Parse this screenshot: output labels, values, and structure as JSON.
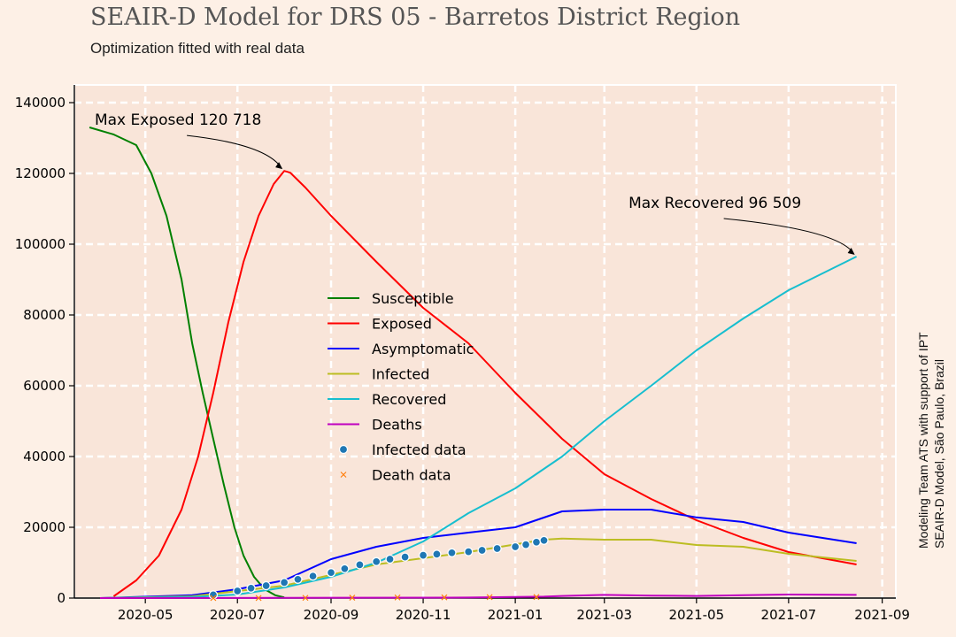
{
  "chart_data": {
    "type": "line",
    "title": "SEAIR-D Model for DRS 05 - Barretos District Region",
    "subtitle": "Optimization fitted with real data",
    "side_note": [
      "Modeling Team ATS with support of IPT",
      "SEAIR-D Model, São Paulo, Brazil"
    ],
    "xlabel": "",
    "ylabel": "",
    "x_axis": {
      "type": "date",
      "range": [
        "2020-03-15",
        "2021-09-10"
      ],
      "ticks": [
        "2020-05",
        "2020-07",
        "2020-09",
        "2020-11",
        "2021-01",
        "2021-03",
        "2021-05",
        "2021-07",
        "2021-09"
      ]
    },
    "y_axis": {
      "range": [
        0,
        145000
      ],
      "ticks": [
        0,
        20000,
        40000,
        60000,
        80000,
        100000,
        120000,
        140000
      ]
    },
    "grid": true,
    "legend_position": "center-left",
    "colors": {
      "background": "#fdf0e6",
      "plot_area": "#f9e5d9",
      "grid": "#ffffff"
    },
    "series": [
      {
        "name": "Susceptible",
        "color": "#008000",
        "kind": "line",
        "x": [
          "2020-03-25",
          "2020-04-10",
          "2020-04-25",
          "2020-05-05",
          "2020-05-15",
          "2020-05-25",
          "2020-06-01",
          "2020-06-08",
          "2020-06-15",
          "2020-06-22",
          "2020-06-29",
          "2020-07-05",
          "2020-07-12",
          "2020-07-19",
          "2020-07-26",
          "2020-08-01"
        ],
        "y": [
          133000,
          131000,
          128000,
          120000,
          108000,
          90000,
          72000,
          58000,
          45000,
          32000,
          20000,
          12000,
          6000,
          2500,
          800,
          200
        ]
      },
      {
        "name": "Exposed",
        "color": "#ff0000",
        "kind": "line",
        "x": [
          "2020-04-10",
          "2020-04-25",
          "2020-05-10",
          "2020-05-25",
          "2020-06-05",
          "2020-06-15",
          "2020-06-25",
          "2020-07-05",
          "2020-07-15",
          "2020-07-25",
          "2020-08-01",
          "2020-08-05",
          "2020-08-15",
          "2020-09-01",
          "2020-10-01",
          "2020-11-01",
          "2020-12-01",
          "2021-01-01",
          "2021-02-01",
          "2021-03-01",
          "2021-04-01",
          "2021-05-01",
          "2021-06-01",
          "2021-07-01",
          "2021-08-15"
        ],
        "y": [
          500,
          5000,
          12000,
          25000,
          40000,
          58000,
          78000,
          95000,
          108000,
          117000,
          120700,
          120200,
          116000,
          108000,
          95000,
          82000,
          72000,
          58000,
          45000,
          35000,
          28000,
          22000,
          17000,
          13000,
          9500
        ]
      },
      {
        "name": "Asymptomatic",
        "color": "#0000ff",
        "kind": "line",
        "x": [
          "2020-04-01",
          "2020-06-01",
          "2020-07-01",
          "2020-08-01",
          "2020-09-01",
          "2020-10-01",
          "2020-11-01",
          "2020-12-01",
          "2021-01-01",
          "2021-02-01",
          "2021-03-01",
          "2021-04-01",
          "2021-05-01",
          "2021-06-01",
          "2021-07-01",
          "2021-08-15"
        ],
        "y": [
          0,
          800,
          2500,
          5000,
          11000,
          14500,
          17000,
          18500,
          20000,
          24500,
          25000,
          25000,
          22800,
          21500,
          18500,
          15500
        ]
      },
      {
        "name": "Infected",
        "color": "#bcbd22",
        "kind": "line",
        "x": [
          "2020-04-01",
          "2020-06-01",
          "2020-08-01",
          "2020-10-01",
          "2020-12-01",
          "2021-01-20",
          "2021-02-01",
          "2021-03-01",
          "2021-04-01",
          "2021-05-01",
          "2021-06-01",
          "2021-07-01",
          "2021-08-15"
        ],
        "y": [
          0,
          500,
          3500,
          9500,
          13000,
          16500,
          16800,
          16500,
          16500,
          15000,
          14500,
          12500,
          10500
        ]
      },
      {
        "name": "Recovered",
        "color": "#17becf",
        "kind": "line",
        "x": [
          "2020-04-01",
          "2020-06-01",
          "2020-07-01",
          "2020-08-01",
          "2020-09-01",
          "2020-10-01",
          "2020-11-01",
          "2020-12-01",
          "2021-01-01",
          "2021-02-01",
          "2021-03-01",
          "2021-04-01",
          "2021-05-01",
          "2021-06-01",
          "2021-07-01",
          "2021-08-15"
        ],
        "y": [
          0,
          300,
          1000,
          3000,
          6000,
          10000,
          16000,
          24000,
          31000,
          40000,
          50000,
          60000,
          70000,
          79000,
          87000,
          96509
        ]
      },
      {
        "name": "Deaths",
        "color": "#bf00bf",
        "kind": "line",
        "x": [
          "2020-04-01",
          "2020-08-01",
          "2020-12-01",
          "2021-01-20",
          "2021-02-01",
          "2021-03-01",
          "2021-04-01",
          "2021-05-01",
          "2021-06-01",
          "2021-07-01",
          "2021-08-15"
        ],
        "y": [
          0,
          50,
          150,
          400,
          600,
          900,
          700,
          600,
          800,
          1000,
          900
        ]
      },
      {
        "name": "Infected data",
        "color": "#1f77b4",
        "kind": "scatter-dot",
        "x": [
          "2020-06-15",
          "2020-07-01",
          "2020-07-10",
          "2020-07-20",
          "2020-08-01",
          "2020-08-10",
          "2020-08-20",
          "2020-09-01",
          "2020-09-10",
          "2020-09-20",
          "2020-10-01",
          "2020-10-10",
          "2020-10-20",
          "2020-11-01",
          "2020-11-10",
          "2020-11-20",
          "2020-12-01",
          "2020-12-10",
          "2020-12-20",
          "2021-01-01",
          "2021-01-08",
          "2021-01-15",
          "2021-01-20"
        ],
        "y": [
          900,
          2000,
          2800,
          3500,
          4400,
          5300,
          6200,
          7200,
          8300,
          9400,
          10300,
          11000,
          11600,
          12100,
          12400,
          12800,
          13100,
          13500,
          14000,
          14500,
          15100,
          15800,
          16300
        ]
      },
      {
        "name": "Death data",
        "color": "#ff7f0e",
        "kind": "scatter-x",
        "x": [
          "2020-06-15",
          "2020-07-15",
          "2020-08-15",
          "2020-09-15",
          "2020-10-15",
          "2020-11-15",
          "2020-12-15",
          "2021-01-15"
        ],
        "y": [
          5,
          20,
          60,
          110,
          160,
          210,
          260,
          300
        ]
      }
    ],
    "annotations": [
      {
        "text": "Max Exposed 120 718",
        "x": "2020-08-01",
        "y": 120718
      },
      {
        "text": "Max Recovered 96 509",
        "x": "2021-08-15",
        "y": 96509
      }
    ]
  }
}
